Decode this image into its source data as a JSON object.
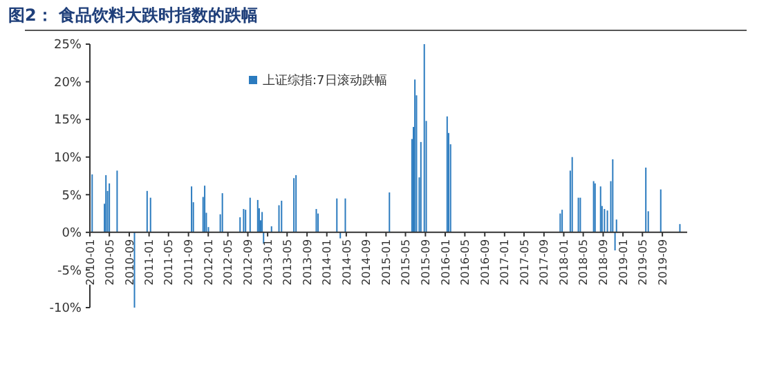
{
  "chart_data": {
    "type": "bar",
    "title": "图2：  食品饮料大跌时指数的跌幅",
    "x": [
      "2010-01-15",
      "2010-04-01",
      "2010-04-10",
      "2010-04-20",
      "2010-05-01",
      "2010-06-18",
      "2010-10-03",
      "2010-12-20",
      "2011-01-10",
      "2011-09-20",
      "2011-10-01",
      "2011-11-30",
      "2011-12-10",
      "2011-12-20",
      "2012-01-02",
      "2012-03-15",
      "2012-03-28",
      "2012-07-15",
      "2012-08-06",
      "2012-08-18",
      "2012-09-15",
      "2012-11-01",
      "2012-11-10",
      "2012-11-19",
      "2012-11-28",
      "2012-12-07",
      "2013-01-25",
      "2013-03-12",
      "2013-03-28",
      "2013-06-12",
      "2013-06-25",
      "2013-10-28",
      "2013-11-08",
      "2014-03-04",
      "2014-03-25",
      "2014-04-25",
      "2015-01-22",
      "2015-06-10",
      "2015-06-19",
      "2015-06-28",
      "2015-07-08",
      "2015-07-25",
      "2015-08-04",
      "2015-08-25",
      "2015-09-06",
      "2016-01-13",
      "2016-01-22",
      "2016-02-03",
      "2017-12-10",
      "2017-12-22",
      "2018-02-10",
      "2018-02-22",
      "2018-04-01",
      "2018-04-13",
      "2018-07-04",
      "2018-07-13",
      "2018-08-16",
      "2018-08-25",
      "2018-09-09",
      "2018-09-27",
      "2018-10-18",
      "2018-10-30",
      "2018-11-13",
      "2018-11-22",
      "2019-05-22",
      "2019-06-06",
      "2019-08-22",
      "2019-12-18"
    ],
    "series": [
      {
        "name": "上证综指:7日滚动跌幅",
        "color": "#2b7bbf",
        "values": [
          7.7,
          3.8,
          7.6,
          5.5,
          6.5,
          8.2,
          -10,
          5.5,
          4.6,
          6.1,
          4.0,
          4.7,
          6.2,
          2.6,
          0.7,
          2.4,
          5.2,
          2.0,
          3.1,
          3.0,
          4.6,
          4.3,
          3.2,
          1.6,
          2.7,
          -1.5,
          0.8,
          3.6,
          4.2,
          7.2,
          7.6,
          3.1,
          2.5,
          4.5,
          -0.8,
          4.5,
          5.3,
          12.4,
          14.0,
          20.3,
          18.2,
          7.3,
          12.0,
          25.0,
          14.8,
          15.4,
          13.2,
          11.7,
          2.5,
          3.0,
          8.2,
          10.0,
          4.6,
          4.6,
          6.8,
          6.5,
          6.1,
          3.5,
          3.1,
          2.9,
          6.8,
          9.7,
          -2.4,
          1.7,
          8.6,
          2.8,
          5.7,
          1.1
        ]
      }
    ],
    "xlim": [
      "2010-01-01",
      "2020-02-01"
    ],
    "xticks": [
      {
        "value": "2010-01-01",
        "label": "2010-01"
      },
      {
        "value": "2010-05-01",
        "label": "2010-05"
      },
      {
        "value": "2010-09-01",
        "label": "2010-09"
      },
      {
        "value": "2011-01-01",
        "label": "2011-01"
      },
      {
        "value": "2011-05-01",
        "label": "2011-05"
      },
      {
        "value": "2011-09-01",
        "label": "2011-09"
      },
      {
        "value": "2012-01-01",
        "label": "2012-01"
      },
      {
        "value": "2012-05-01",
        "label": "2012-05"
      },
      {
        "value": "2012-09-01",
        "label": "2012-09"
      },
      {
        "value": "2013-01-01",
        "label": "2013-01"
      },
      {
        "value": "2013-05-01",
        "label": "2013-05"
      },
      {
        "value": "2013-09-01",
        "label": "2013-09"
      },
      {
        "value": "2014-01-01",
        "label": "2014-01"
      },
      {
        "value": "2014-05-01",
        "label": "2014-05"
      },
      {
        "value": "2014-09-01",
        "label": "2014-09"
      },
      {
        "value": "2015-01-01",
        "label": "2015-01"
      },
      {
        "value": "2015-05-01",
        "label": "2015-05"
      },
      {
        "value": "2015-09-01",
        "label": "2015-09"
      },
      {
        "value": "2016-01-01",
        "label": "2016-01"
      },
      {
        "value": "2016-05-01",
        "label": "2016-05"
      },
      {
        "value": "2016-09-01",
        "label": "2016-09"
      },
      {
        "value": "2017-01-01",
        "label": "2017-01"
      },
      {
        "value": "2017-05-01",
        "label": "2017-05"
      },
      {
        "value": "2017-09-01",
        "label": "2017-09"
      },
      {
        "value": "2018-01-01",
        "label": "2018-01"
      },
      {
        "value": "2018-05-01",
        "label": "2018-05"
      },
      {
        "value": "2018-09-01",
        "label": "2018-09"
      },
      {
        "value": "2019-01-01",
        "label": "2019-01"
      },
      {
        "value": "2019-05-01",
        "label": "2019-05"
      },
      {
        "value": "2019-09-01",
        "label": "2019-09"
      }
    ],
    "ylim": [
      -10,
      25
    ],
    "yticks": [
      {
        "value": -10,
        "label": "-10%"
      },
      {
        "value": -5,
        "label": "-5%"
      },
      {
        "value": 0,
        "label": "0%"
      },
      {
        "value": 5,
        "label": "5%"
      },
      {
        "value": 10,
        "label": "10%"
      },
      {
        "value": 15,
        "label": "15%"
      },
      {
        "value": 20,
        "label": "20%"
      },
      {
        "value": 25,
        "label": "25%"
      }
    ],
    "legend": "top"
  }
}
